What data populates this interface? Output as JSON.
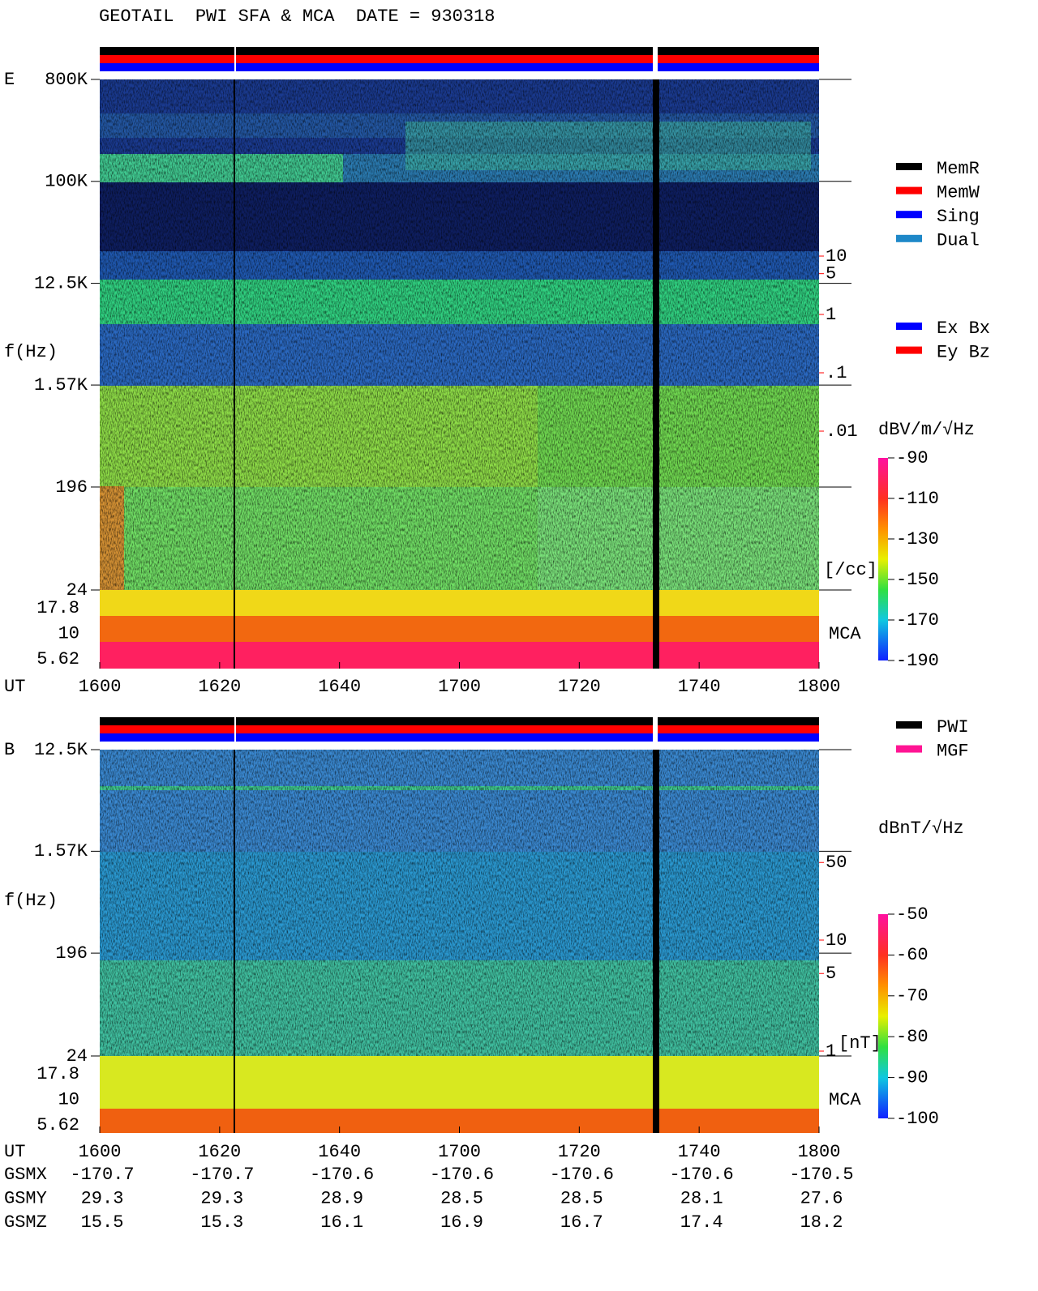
{
  "title": "GEOTAIL  PWI SFA & MCA  DATE = 930318",
  "mode_legend": [
    {
      "label": "MemR",
      "color": "#000000"
    },
    {
      "label": "MemW",
      "color": "#ff0000"
    },
    {
      "label": "Sing",
      "color": "#0000ff"
    },
    {
      "label": "Dual",
      "color": "#1e88c8"
    }
  ],
  "panels": [
    {
      "name": "E",
      "ylabel": "f(Hz)",
      "freq_ticks": [
        {
          "value": 800000,
          "label": "800K"
        },
        {
          "value": 100000,
          "label": "100K"
        },
        {
          "value": 12500,
          "label": "12.5K"
        },
        {
          "value": 1570,
          "label": "1.57K"
        },
        196,
        24
      ],
      "mca_ticks": [
        17.8,
        10,
        5.62
      ],
      "mca_label": "MCA",
      "time_label": "UT",
      "time_ticks": [
        "1600",
        "1620",
        "1640",
        "1700",
        "1720",
        "1740",
        "1800"
      ],
      "unit": "dBV/m/√Hz",
      "clim": [
        -190,
        -90
      ],
      "cticks": [
        -90,
        -110,
        -130,
        -150,
        -170,
        -190
      ],
      "side_ticks": [
        10,
        5,
        1,
        {
          "value": 0.1,
          "label": ".1"
        },
        {
          "value": 0.01,
          "label": ".01"
        }
      ],
      "side_unit": "[/cc]",
      "legend": [
        {
          "label": "Ex Bx",
          "color": "#0000ff"
        },
        {
          "label": "Ey Bz",
          "color": "#ff0000"
        }
      ]
    },
    {
      "name": "B",
      "ylabel": "f(Hz)",
      "freq_ticks": [
        {
          "value": 12500,
          "label": "12.5K"
        },
        {
          "value": 1570,
          "label": "1.57K"
        },
        196,
        24
      ],
      "mca_ticks": [
        17.8,
        10,
        5.62
      ],
      "mca_label": "MCA",
      "time_label": "UT",
      "time_ticks": [
        "1600",
        "1620",
        "1640",
        "1700",
        "1720",
        "1740",
        "1800"
      ],
      "unit": "dBnT/√Hz",
      "clim": [
        -100,
        -50
      ],
      "cticks": [
        -50,
        -60,
        -70,
        -80,
        -90,
        -100
      ],
      "side_ticks": [
        50,
        10,
        5,
        1
      ],
      "side_unit": "[nT]",
      "legend": [
        {
          "label": "PWI",
          "color": "#000000"
        },
        {
          "label": "MGF",
          "color": "#ff1493"
        }
      ]
    }
  ],
  "orbit": {
    "rows": [
      {
        "label": "GSMX",
        "values": [
          -170.7,
          -170.7,
          -170.6,
          -170.6,
          -170.6,
          -170.6,
          -170.5
        ]
      },
      {
        "label": "GSMY",
        "values": [
          29.3,
          29.3,
          28.9,
          28.5,
          28.5,
          28.1,
          27.6
        ]
      },
      {
        "label": "GSMZ",
        "values": [
          15.5,
          15.3,
          16.1,
          16.9,
          16.7,
          17.4,
          18.2
        ]
      }
    ]
  }
}
